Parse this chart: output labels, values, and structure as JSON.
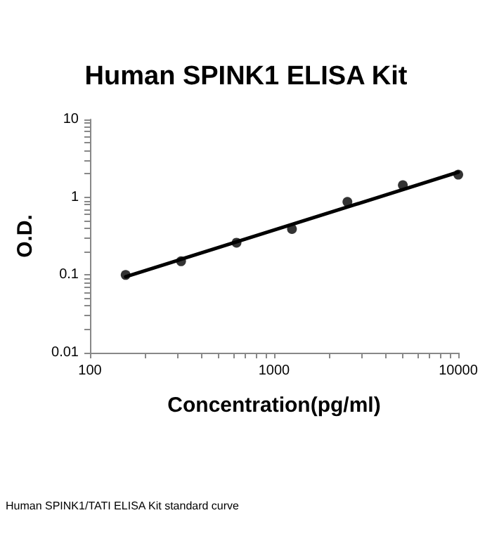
{
  "chart_data": {
    "type": "scatter",
    "title": "Human SPINK1 ELISA Kit",
    "xlabel": "Concentration(pg/ml)",
    "ylabel": "O.D.",
    "annotations": [
      "Human SPINK1/TATI ELISA Kit standard curve"
    ],
    "log": "xy",
    "grid": false,
    "marker": "circle",
    "xlim": [
      100,
      10000
    ],
    "ylim": [
      0.01,
      10
    ],
    "xticks": [
      100,
      {
        "value": 200,
        "label": null
      },
      {
        "value": 300,
        "label": null
      },
      {
        "value": 400,
        "label": null
      },
      {
        "value": 500,
        "label": null
      },
      {
        "value": 600,
        "label": null
      },
      {
        "value": 700,
        "label": null
      },
      {
        "value": 800,
        "label": null
      },
      {
        "value": 900,
        "label": null
      },
      1000,
      {
        "value": 2000,
        "label": null
      },
      {
        "value": 3000,
        "label": null
      },
      {
        "value": 4000,
        "label": null
      },
      {
        "value": 5000,
        "label": null
      },
      {
        "value": 6000,
        "label": null
      },
      {
        "value": 7000,
        "label": null
      },
      {
        "value": 8000,
        "label": null
      },
      {
        "value": 9000,
        "label": null
      },
      10000
    ],
    "yticks": [
      0.01,
      {
        "value": 0.02,
        "label": null
      },
      {
        "value": 0.03,
        "label": null
      },
      {
        "value": 0.04,
        "label": null
      },
      {
        "value": 0.05,
        "label": null
      },
      {
        "value": 0.06,
        "label": null
      },
      {
        "value": 0.07,
        "label": null
      },
      {
        "value": 0.08,
        "label": null
      },
      {
        "value": 0.09,
        "label": null
      },
      0.1,
      {
        "value": 0.2,
        "label": null
      },
      {
        "value": 0.3,
        "label": null
      },
      {
        "value": 0.4,
        "label": null
      },
      {
        "value": 0.5,
        "label": null
      },
      {
        "value": 0.6,
        "label": null
      },
      {
        "value": 0.7,
        "label": null
      },
      {
        "value": 0.8,
        "label": null
      },
      {
        "value": 0.9,
        "label": null
      },
      1,
      {
        "value": 2,
        "label": null
      },
      {
        "value": 3,
        "label": null
      },
      {
        "value": 4,
        "label": null
      },
      {
        "value": 5,
        "label": null
      },
      {
        "value": 6,
        "label": null
      },
      {
        "value": 7,
        "label": null
      },
      {
        "value": 8,
        "label": null
      },
      {
        "value": 9,
        "label": null
      },
      10
    ],
    "series": [
      {
        "color": "#000000",
        "x": [
          156.25,
          312.5,
          625,
          1250,
          2500,
          5000,
          10000
        ],
        "values": [
          0.1,
          0.15,
          0.26,
          0.39,
          0.87,
          1.43,
          1.95
        ]
      },
      {
        "type": "line",
        "marker": "none",
        "color": "#000000",
        "line_style": "solid",
        "x": [
          156.25,
          10000
        ],
        "values": [
          0.095,
          2.1
        ]
      }
    ]
  }
}
